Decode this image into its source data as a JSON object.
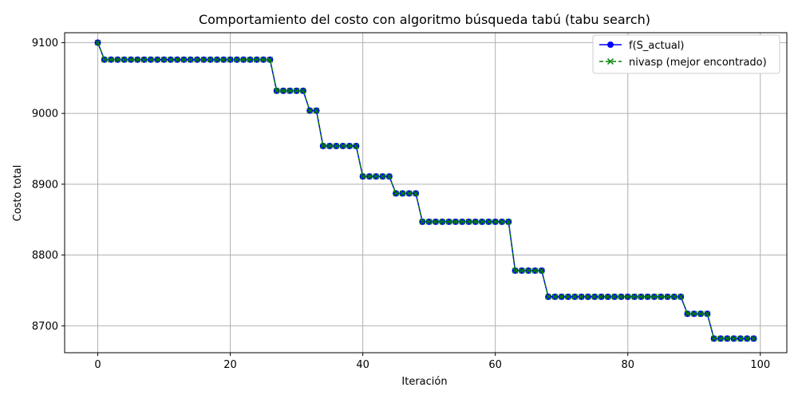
{
  "chart_data": {
    "type": "line",
    "title": "Comportamiento del costo con algoritmo búsqueda tabú (tabu search)",
    "xlabel": "Iteración",
    "ylabel": "Costo total",
    "xlim": [
      -5,
      104
    ],
    "ylim": [
      8662,
      9114
    ],
    "x_ticks": [
      0,
      20,
      40,
      60,
      80,
      100
    ],
    "y_ticks": [
      8700,
      8800,
      8900,
      9000,
      9100
    ],
    "grid": true,
    "legend_position": "top-right",
    "steps": [
      {
        "from": 0,
        "to": 0,
        "value": 9100
      },
      {
        "from": 1,
        "to": 26,
        "value": 9076
      },
      {
        "from": 27,
        "to": 31,
        "value": 9032
      },
      {
        "from": 32,
        "to": 33,
        "value": 9004
      },
      {
        "from": 34,
        "to": 39,
        "value": 8954
      },
      {
        "from": 40,
        "to": 44,
        "value": 8911
      },
      {
        "from": 45,
        "to": 48,
        "value": 8887
      },
      {
        "from": 49,
        "to": 62,
        "value": 8847
      },
      {
        "from": 63,
        "to": 67,
        "value": 8778
      },
      {
        "from": 68,
        "to": 88,
        "value": 8741
      },
      {
        "from": 89,
        "to": 92,
        "value": 8717
      },
      {
        "from": 93,
        "to": 99,
        "value": 8682
      }
    ],
    "series": [
      {
        "name": "f(S_actual)",
        "color": "#0000ff",
        "marker": "circle",
        "line": "solid"
      },
      {
        "name": "nivasp (mejor encontrado)",
        "color": "#008000",
        "marker": "x",
        "line": "dashed"
      }
    ]
  }
}
